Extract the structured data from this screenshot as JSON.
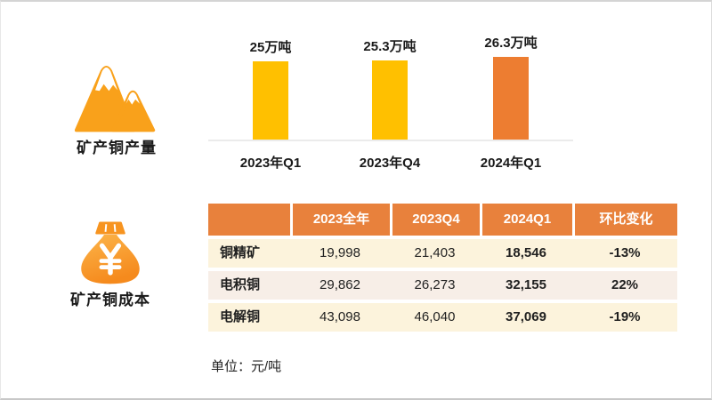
{
  "slide": {
    "production_label": "矿产铜产量",
    "cost_label": "矿产铜成本",
    "unit_note": "单位：元/吨"
  },
  "chart_data": [
    {
      "type": "bar",
      "title": "矿产铜产量",
      "categories": [
        "2023年Q1",
        "2023年Q4",
        "2024年Q1"
      ],
      "values": [
        25,
        25.3,
        26.3
      ],
      "data_labels": [
        "25万吨",
        "25.3万吨",
        "26.3万吨"
      ],
      "unit": "万吨",
      "bar_colors": [
        "#FFC000",
        "#FFC000",
        "#ED7D31"
      ],
      "ylim": [
        0,
        26.3
      ],
      "grid": false,
      "legend": "none",
      "baseline_axis_color": "#ebebeb"
    },
    {
      "type": "table",
      "title": "矿产铜成本",
      "unit": "元/吨",
      "columns": [
        "",
        "2023全年",
        "2023Q4",
        "2024Q1",
        "环比变化"
      ],
      "rows": [
        [
          "铜精矿",
          "19,998",
          "21,403",
          "18,546",
          "-13%"
        ],
        [
          "电积铜",
          "29,862",
          "26,273",
          "32,155",
          "22%"
        ],
        [
          "电解铜",
          "43,098",
          "46,040",
          "37,069",
          "-19%"
        ]
      ],
      "emphasized_columns": [
        "2024Q1",
        "环比变化"
      ],
      "header_bg": "#E8813C",
      "row_bg_odd": "#FCF3DC",
      "row_bg_even": "#F7EEE7"
    }
  ],
  "colors": {
    "bar_yellow": "#FFC000",
    "bar_orange": "#ED7D31",
    "icon_orange": "#F9A11B",
    "bag_orange_light": "#FCB54A",
    "bag_orange_dark": "#F58A1D"
  }
}
